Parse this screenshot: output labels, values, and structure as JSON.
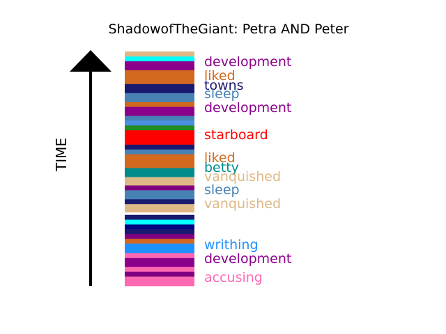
{
  "chart_data": {
    "type": "bar",
    "title": "ShadowofTheGiant: Petra AND Peter",
    "ylabel": "TIME",
    "orientation": "bottom-to-top",
    "segments": [
      {
        "color": "#ff69b4",
        "weight": 1.6
      },
      {
        "color": "#800080",
        "weight": 0.8
      },
      {
        "color": "#ff69b4",
        "weight": 0.8
      },
      {
        "color": "#8b008b",
        "weight": 1.5
      },
      {
        "color": "#ff69b4",
        "weight": 0.8
      },
      {
        "color": "#1e90ff",
        "weight": 1.6
      },
      {
        "color": "#d2691e",
        "weight": 0.8
      },
      {
        "color": "#800080",
        "weight": 0.8
      },
      {
        "color": "#191970",
        "weight": 0.8
      },
      {
        "color": "#000080",
        "weight": 0.8
      },
      {
        "color": "#00ffff",
        "weight": 0.8
      },
      {
        "color": "#191970",
        "weight": 0.8
      },
      {
        "color": "#ffffff",
        "weight": 0.4
      },
      {
        "color": "#deb887",
        "weight": 1.4
      },
      {
        "color": "#191970",
        "weight": 0.8
      },
      {
        "color": "#4682b4",
        "weight": 1.5
      },
      {
        "color": "#800080",
        "weight": 0.8
      },
      {
        "color": "#deb887",
        "weight": 1.4
      },
      {
        "color": "#008b8b",
        "weight": 1.5
      },
      {
        "color": "#d2691e",
        "weight": 2.3
      },
      {
        "color": "#4682b4",
        "weight": 0.8
      },
      {
        "color": "#191970",
        "weight": 0.8
      },
      {
        "color": "#ff0000",
        "weight": 2.4
      },
      {
        "color": "#228b22",
        "weight": 0.8
      },
      {
        "color": "#4a90e2",
        "weight": 0.8
      },
      {
        "color": "#4682b4",
        "weight": 0.8
      },
      {
        "color": "#8b008b",
        "weight": 1.5
      },
      {
        "color": "#d2691e",
        "weight": 0.8
      },
      {
        "color": "#4682b4",
        "weight": 1.5
      },
      {
        "color": "#191970",
        "weight": 1.5
      },
      {
        "color": "#d2691e",
        "weight": 2.3
      },
      {
        "color": "#8b008b",
        "weight": 1.5
      },
      {
        "color": "#00ffff",
        "weight": 0.8
      },
      {
        "color": "#deb887",
        "weight": 0.8
      }
    ],
    "labels": [
      {
        "text": "development",
        "color": "#8b008b"
      },
      {
        "text": "liked",
        "color": "#d2691e"
      },
      {
        "text": "towns",
        "color": "#191970"
      },
      {
        "text": "sleep",
        "color": "#4682b4"
      },
      {
        "text": "development",
        "color": "#8b008b"
      },
      {
        "text": "starboard",
        "color": "#ff0000"
      },
      {
        "text": "liked",
        "color": "#d2691e"
      },
      {
        "text": "betty",
        "color": "#008b8b"
      },
      {
        "text": "vanquished",
        "color": "#deb887"
      },
      {
        "text": "sleep",
        "color": "#4682b4"
      },
      {
        "text": "vanquished",
        "color": "#deb887"
      },
      {
        "text": "writhing",
        "color": "#1e90ff"
      },
      {
        "text": "development",
        "color": "#8b008b"
      },
      {
        "text": "accusing",
        "color": "#ff69b4"
      }
    ]
  }
}
